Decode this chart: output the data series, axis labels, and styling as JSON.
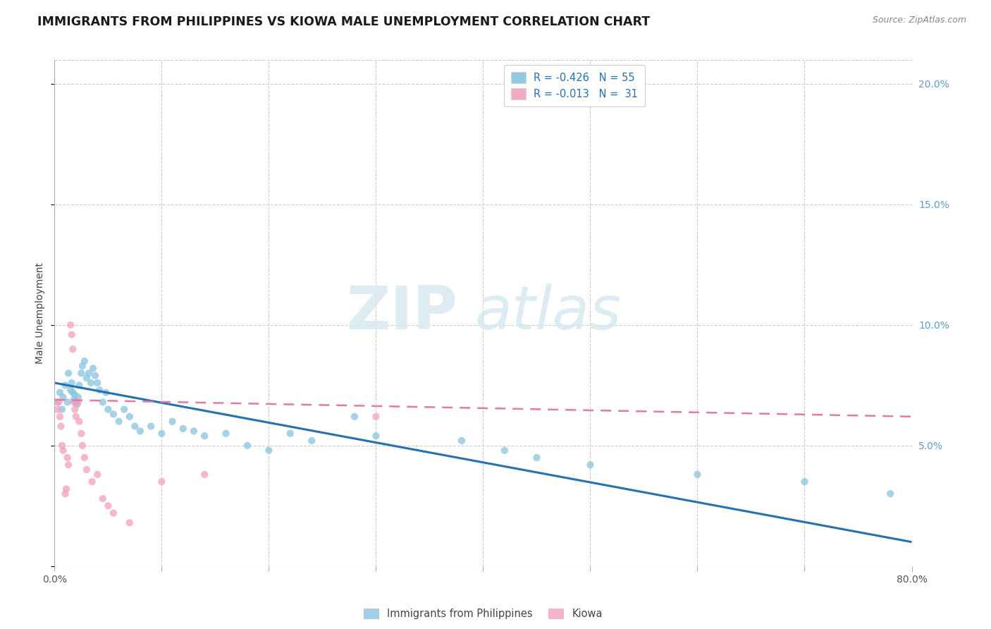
{
  "title": "IMMIGRANTS FROM PHILIPPINES VS KIOWA MALE UNEMPLOYMENT CORRELATION CHART",
  "source_text": "Source: ZipAtlas.com",
  "ylabel": "Male Unemployment",
  "xlabel": "",
  "xlim": [
    0.0,
    0.8
  ],
  "ylim": [
    0.0,
    0.21
  ],
  "ytick_vals": [
    0.0,
    0.05,
    0.1,
    0.15,
    0.2
  ],
  "xtick_vals": [
    0.0,
    0.1,
    0.2,
    0.3,
    0.4,
    0.5,
    0.6,
    0.7,
    0.8
  ],
  "legend_entries": [
    {
      "label": "R = -0.426   N = 55",
      "color": "#89c4e1"
    },
    {
      "label": "R = -0.013   N =  31",
      "color": "#f4a0c0"
    }
  ],
  "legend_label_philippines": "Immigrants from Philippines",
  "legend_label_kiowa": "Kiowa",
  "scatter_philippines": {
    "x": [
      0.003,
      0.005,
      0.007,
      0.008,
      0.01,
      0.012,
      0.013,
      0.015,
      0.016,
      0.017,
      0.018,
      0.019,
      0.02,
      0.021,
      0.022,
      0.023,
      0.025,
      0.026,
      0.028,
      0.03,
      0.032,
      0.034,
      0.036,
      0.038,
      0.04,
      0.042,
      0.045,
      0.048,
      0.05,
      0.055,
      0.06,
      0.065,
      0.07,
      0.075,
      0.08,
      0.09,
      0.1,
      0.11,
      0.12,
      0.13,
      0.14,
      0.16,
      0.18,
      0.2,
      0.22,
      0.24,
      0.28,
      0.3,
      0.38,
      0.42,
      0.45,
      0.5,
      0.6,
      0.7,
      0.78
    ],
    "y": [
      0.068,
      0.072,
      0.065,
      0.07,
      0.075,
      0.068,
      0.08,
      0.073,
      0.076,
      0.072,
      0.069,
      0.071,
      0.068,
      0.067,
      0.07,
      0.075,
      0.08,
      0.083,
      0.085,
      0.078,
      0.08,
      0.076,
      0.082,
      0.079,
      0.076,
      0.073,
      0.068,
      0.072,
      0.065,
      0.063,
      0.06,
      0.065,
      0.062,
      0.058,
      0.056,
      0.058,
      0.055,
      0.06,
      0.057,
      0.056,
      0.054,
      0.055,
      0.05,
      0.048,
      0.055,
      0.052,
      0.062,
      0.054,
      0.052,
      0.048,
      0.045,
      0.042,
      0.038,
      0.035,
      0.03
    ],
    "color": "#89c4e1",
    "alpha": 0.75,
    "size": 55
  },
  "scatter_kiowa": {
    "x": [
      0.003,
      0.004,
      0.005,
      0.006,
      0.007,
      0.008,
      0.01,
      0.011,
      0.012,
      0.013,
      0.015,
      0.016,
      0.017,
      0.018,
      0.019,
      0.02,
      0.022,
      0.023,
      0.025,
      0.026,
      0.028,
      0.03,
      0.035,
      0.04,
      0.045,
      0.05,
      0.055,
      0.07,
      0.1,
      0.14,
      0.3
    ],
    "y": [
      0.065,
      0.068,
      0.062,
      0.058,
      0.05,
      0.048,
      0.03,
      0.032,
      0.045,
      0.042,
      0.1,
      0.096,
      0.09,
      0.068,
      0.065,
      0.062,
      0.068,
      0.06,
      0.055,
      0.05,
      0.045,
      0.04,
      0.035,
      0.038,
      0.028,
      0.025,
      0.022,
      0.018,
      0.035,
      0.038,
      0.062
    ],
    "color": "#f4a0c0",
    "alpha": 0.75,
    "size": 55
  },
  "trend_philippines": {
    "x_start": 0.0,
    "x_end": 0.8,
    "y_start": 0.076,
    "y_end": 0.01,
    "color": "#2171b5",
    "linewidth": 2.2
  },
  "trend_kiowa": {
    "x_start": 0.0,
    "x_end": 0.8,
    "y_start": 0.069,
    "y_end": 0.062,
    "color": "#e8799e",
    "linewidth": 1.8,
    "linestyle": "--"
  },
  "watermark_zip": "ZIP",
  "watermark_atlas": "atlas",
  "background_color": "#ffffff",
  "grid_color": "#cccccc",
  "title_fontsize": 12.5,
  "axis_label_fontsize": 10,
  "tick_fontsize": 10,
  "tick_color_right": "#5b9bd5",
  "tick_color_bottom": "#555555"
}
